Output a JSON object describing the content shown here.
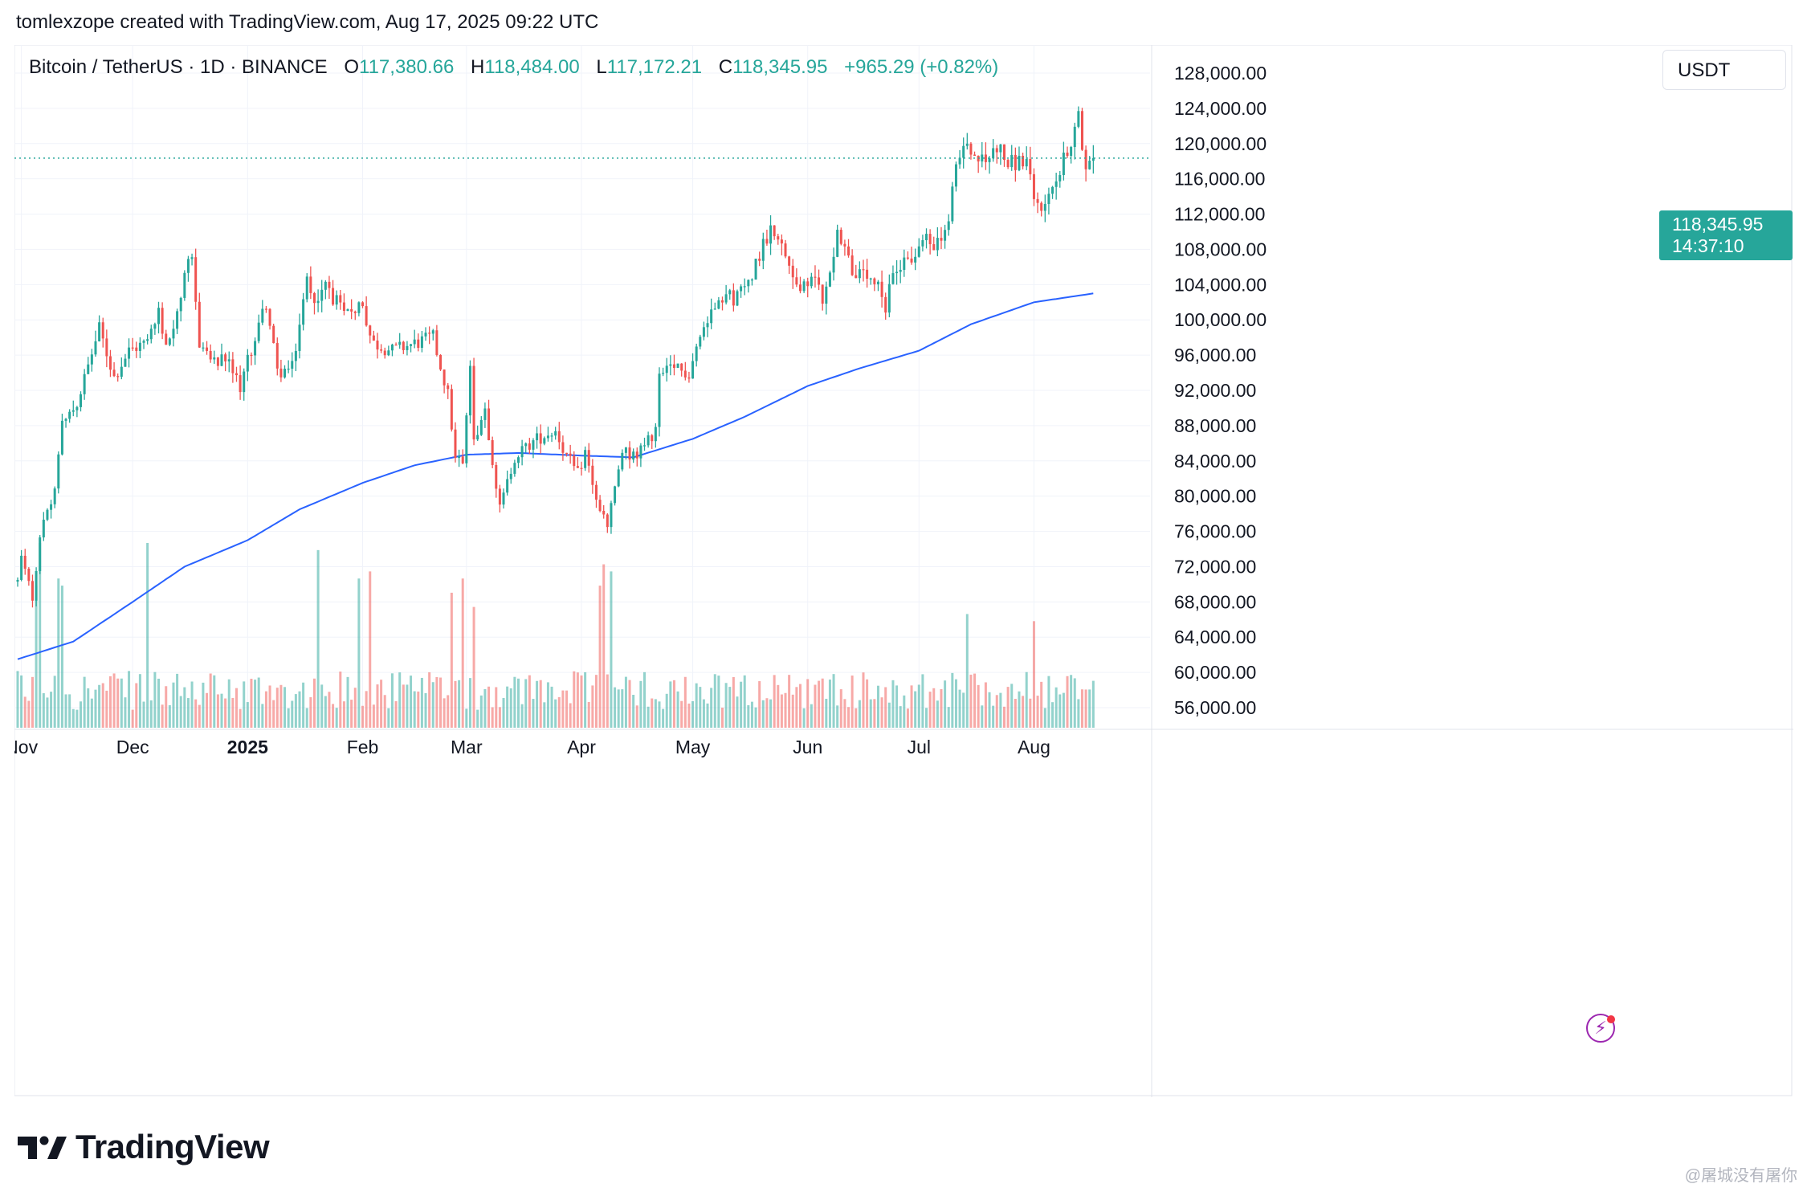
{
  "caption": "tomlexzope created with TradingView.com, Aug 17, 2025 09:22 UTC",
  "header": {
    "symbol": "Bitcoin / TetherUS · 1D · BINANCE",
    "open_label": "O",
    "open": "117,380.66",
    "high_label": "H",
    "high": "118,484.00",
    "low_label": "L",
    "low": "117,172.21",
    "close_label": "C",
    "close": "118,345.95",
    "change": "+965.29 (+0.82%)"
  },
  "unit": "USDT",
  "last_price": {
    "price": "118,345.95",
    "countdown": "14:37:10"
  },
  "brand": "TradingView",
  "watermark": "@屠城没有屠你",
  "colors": {
    "up": "#26a69a",
    "down": "#ef5350",
    "ma": "#2962ff",
    "grid": "#f0f3fa"
  },
  "icons": {
    "assistant": "lightning-bolt-icon",
    "logo": "tradingview-logo-icon"
  },
  "chart_data": {
    "type": "candlestick",
    "y_ticks": [
      "128,000.00",
      "124,000.00",
      "120,000.00",
      "116,000.00",
      "112,000.00",
      "108,000.00",
      "104,000.00",
      "100,000.00",
      "96,000.00",
      "92,000.00",
      "88,000.00",
      "84,000.00",
      "80,000.00",
      "76,000.00",
      "72,000.00",
      "68,000.00",
      "64,000.00",
      "60,000.00",
      "56,000.00"
    ],
    "y_tick_values": [
      128000,
      124000,
      120000,
      116000,
      112000,
      108000,
      104000,
      100000,
      96000,
      92000,
      88000,
      84000,
      80000,
      76000,
      72000,
      68000,
      64000,
      60000,
      56000
    ],
    "ylim": [
      55000,
      129000
    ],
    "x_labels": [
      {
        "label": "Nov",
        "date": "2024-11-01",
        "bold": false
      },
      {
        "label": "Dec",
        "date": "2024-12-01",
        "bold": false
      },
      {
        "label": "2025",
        "date": "2025-01-01",
        "bold": true
      },
      {
        "label": "Feb",
        "date": "2025-02-01",
        "bold": false
      },
      {
        "label": "Mar",
        "date": "2025-03-01",
        "bold": false
      },
      {
        "label": "Apr",
        "date": "2025-04-01",
        "bold": false
      },
      {
        "label": "May",
        "date": "2025-05-01",
        "bold": false
      },
      {
        "label": "Jun",
        "date": "2025-06-01",
        "bold": false
      },
      {
        "label": "Jul",
        "date": "2025-07-01",
        "bold": false
      },
      {
        "label": "Aug",
        "date": "2025-08-01",
        "bold": false
      }
    ],
    "first_date": "2024-10-31",
    "last_date": "2025-08-17",
    "axis_end_date": "2025-08-31",
    "close_anchors": [
      [
        "2024-10-31",
        70300
      ],
      [
        "2024-11-01",
        73000
      ],
      [
        "2024-11-04",
        68500
      ],
      [
        "2024-11-06",
        75500
      ],
      [
        "2024-11-10",
        80500
      ],
      [
        "2024-11-12",
        88000
      ],
      [
        "2024-11-16",
        90500
      ],
      [
        "2024-11-22",
        99000
      ],
      [
        "2024-11-26",
        93500
      ],
      [
        "2024-11-30",
        96500
      ],
      [
        "2024-12-05",
        97500
      ],
      [
        "2024-12-08",
        101000
      ],
      [
        "2024-12-10",
        96500
      ],
      [
        "2024-12-16",
        106000
      ],
      [
        "2024-12-17",
        106500
      ],
      [
        "2024-12-19",
        97500
      ],
      [
        "2024-12-23",
        95000
      ],
      [
        "2024-12-26",
        95500
      ],
      [
        "2024-12-30",
        92500
      ],
      [
        "2025-01-03",
        98000
      ],
      [
        "2025-01-06",
        102000
      ],
      [
        "2025-01-09",
        94000
      ],
      [
        "2025-01-13",
        94500
      ],
      [
        "2025-01-17",
        104500
      ],
      [
        "2025-01-20",
        102000
      ],
      [
        "2025-01-22",
        104000
      ],
      [
        "2025-01-27",
        100500
      ],
      [
        "2025-02-01",
        102000
      ],
      [
        "2025-02-03",
        97500
      ],
      [
        "2025-02-09",
        96500
      ],
      [
        "2025-02-20",
        98000
      ],
      [
        "2025-02-24",
        91500
      ],
      [
        "2025-02-26",
        84500
      ],
      [
        "2025-02-28",
        84000
      ],
      [
        "2025-03-02",
        94000
      ],
      [
        "2025-03-03",
        86500
      ],
      [
        "2025-03-06",
        90000
      ],
      [
        "2025-03-10",
        78500
      ],
      [
        "2025-03-14",
        84500
      ],
      [
        "2025-03-20",
        86500
      ],
      [
        "2025-03-25",
        87500
      ],
      [
        "2025-03-28",
        84500
      ],
      [
        "2025-03-31",
        82500
      ],
      [
        "2025-04-02",
        85000
      ],
      [
        "2025-04-06",
        78000
      ],
      [
        "2025-04-08",
        76500
      ],
      [
        "2025-04-12",
        85000
      ],
      [
        "2025-04-16",
        84500
      ],
      [
        "2025-04-21",
        87500
      ],
      [
        "2025-04-22",
        93500
      ],
      [
        "2025-04-26",
        94500
      ],
      [
        "2025-04-30",
        94000
      ],
      [
        "2025-05-02",
        97000
      ],
      [
        "2025-05-08",
        103000
      ],
      [
        "2025-05-12",
        102500
      ],
      [
        "2025-05-15",
        103500
      ],
      [
        "2025-05-21",
        109500
      ],
      [
        "2025-05-22",
        111500
      ],
      [
        "2025-05-25",
        108000
      ],
      [
        "2025-05-30",
        103500
      ],
      [
        "2025-06-04",
        104500
      ],
      [
        "2025-06-05",
        101500
      ],
      [
        "2025-06-09",
        110000
      ],
      [
        "2025-06-11",
        108500
      ],
      [
        "2025-06-13",
        105500
      ],
      [
        "2025-06-17",
        104500
      ],
      [
        "2025-06-20",
        103500
      ],
      [
        "2025-06-22",
        100900
      ],
      [
        "2025-06-24",
        105500
      ],
      [
        "2025-06-27",
        107000
      ],
      [
        "2025-06-30",
        107100
      ],
      [
        "2025-07-03",
        109500
      ],
      [
        "2025-07-06",
        108500
      ],
      [
        "2025-07-09",
        111000
      ],
      [
        "2025-07-11",
        117500
      ],
      [
        "2025-07-14",
        119800
      ],
      [
        "2025-07-16",
        118600
      ],
      [
        "2025-07-19",
        117800
      ],
      [
        "2025-07-22",
        119900
      ],
      [
        "2025-07-25",
        117600
      ],
      [
        "2025-07-28",
        118000
      ],
      [
        "2025-07-30",
        118000
      ],
      [
        "2025-08-01",
        113200
      ],
      [
        "2025-08-02",
        112500
      ],
      [
        "2025-08-05",
        114100
      ],
      [
        "2025-08-08",
        116700
      ],
      [
        "2025-08-10",
        119300
      ],
      [
        "2025-08-11",
        118700
      ],
      [
        "2025-08-13",
        123300
      ],
      [
        "2025-08-14",
        118300
      ],
      [
        "2025-08-16",
        117380
      ],
      [
        "2025-08-17",
        118346
      ]
    ],
    "ma_anchors": [
      [
        "2024-10-31",
        61500
      ],
      [
        "2024-11-15",
        63500
      ],
      [
        "2024-12-01",
        68000
      ],
      [
        "2024-12-15",
        72000
      ],
      [
        "2025-01-01",
        75000
      ],
      [
        "2025-01-15",
        78500
      ],
      [
        "2025-02-01",
        81500
      ],
      [
        "2025-02-15",
        83500
      ],
      [
        "2025-03-01",
        84700
      ],
      [
        "2025-03-15",
        84900
      ],
      [
        "2025-04-01",
        84600
      ],
      [
        "2025-04-15",
        84400
      ],
      [
        "2025-05-01",
        86500
      ],
      [
        "2025-05-15",
        89000
      ],
      [
        "2025-06-01",
        92500
      ],
      [
        "2025-06-15",
        94500
      ],
      [
        "2025-07-01",
        96500
      ],
      [
        "2025-07-15",
        99500
      ],
      [
        "2025-08-01",
        102000
      ],
      [
        "2025-08-17",
        103000
      ]
    ],
    "volume_spikes": [
      [
        "2024-11-05",
        2.0
      ],
      [
        "2024-11-06",
        2.6
      ],
      [
        "2024-11-11",
        2.1
      ],
      [
        "2024-11-12",
        2.0
      ],
      [
        "2024-12-05",
        2.6
      ],
      [
        "2025-01-20",
        2.5
      ],
      [
        "2025-01-31",
        2.1
      ],
      [
        "2025-02-03",
        2.2
      ],
      [
        "2025-02-25",
        1.9
      ],
      [
        "2025-02-28",
        2.1
      ],
      [
        "2025-03-03",
        1.7
      ],
      [
        "2025-04-06",
        2.0
      ],
      [
        "2025-04-07",
        2.3
      ],
      [
        "2025-04-09",
        2.2
      ],
      [
        "2025-07-14",
        1.6
      ],
      [
        "2025-08-01",
        1.5
      ]
    ],
    "ma_period": 200,
    "last_close": 118345.95
  }
}
